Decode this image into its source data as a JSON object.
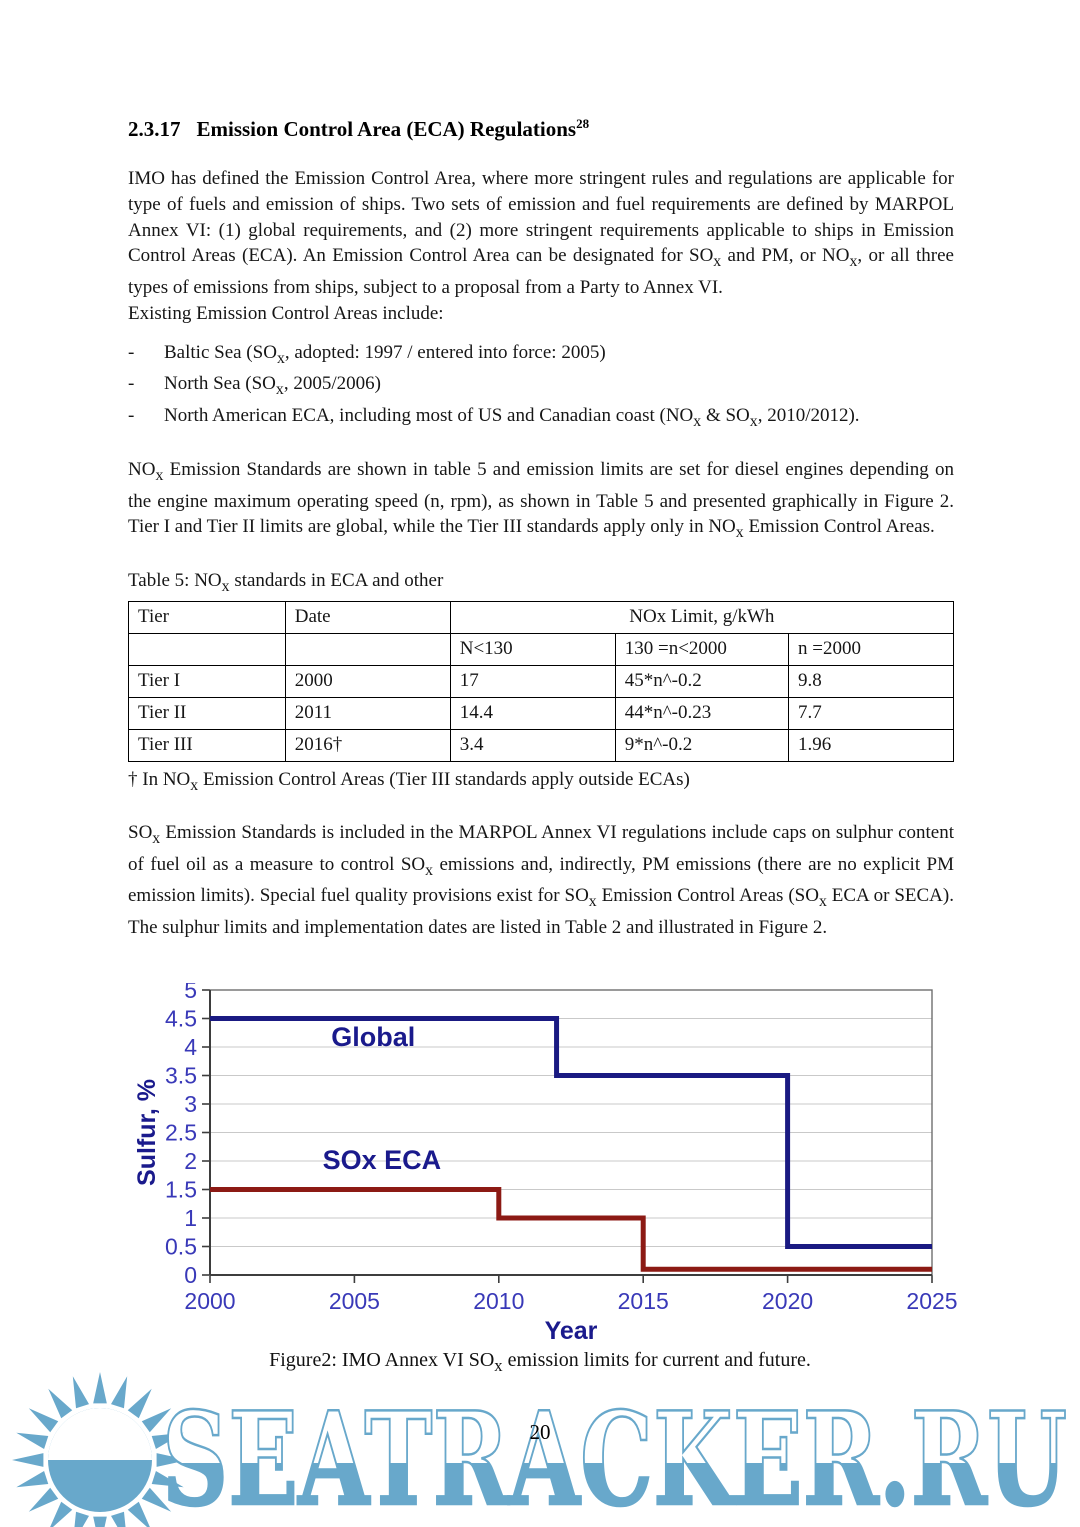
{
  "heading": {
    "number": "2.3.17",
    "title": "Emission Control Area (ECA) Regulations",
    "sup": "28"
  },
  "paragraphs": {
    "p1": "IMO has defined the Emission Control Area, where more stringent rules and regulations are applicable for type of fuels and emission of ships. Two sets of emission and fuel requirements are defined by MARPOL Annex VI: (1) global requirements, and (2) more stringent requirements applicable to ships in Emission Control Areas (ECA). An Emission Control Area can be designated for SO<sub>x</sub> and PM, or NO<sub>x</sub>, or all three types of emissions from ships, subject to a proposal from a Party to Annex VI.",
    "p1b": "Existing Emission Control Areas include:",
    "p2": "NO<sub>x</sub> Emission Standards are shown in table 5 and emission limits are set for diesel engines depending on the engine maximum operating speed (n, rpm), as shown in Table 5 and presented graphically in Figure 2. Tier I and Tier II limits are global, while the Tier III standards apply only in NO<sub>x</sub> Emission Control Areas.",
    "p3": "SO<sub>x</sub> Emission Standards is included in the MARPOL Annex VI regulations include caps on sulphur content of fuel oil as a measure to control SO<sub>x</sub> emissions and, indirectly, PM emissions (there are no explicit PM emission limits). Special fuel quality provisions exist for SO<sub>x</sub> Emission Control Areas (SO<sub>x</sub> ECA or SECA). The sulphur limits and implementation dates are listed in Table 2 and illustrated in Figure 2."
  },
  "bullet_marker": "-",
  "bullets": [
    "Baltic Sea (SO<sub>x</sub>, adopted: 1997 / entered into force: 2005)",
    "North Sea (SO<sub>x</sub>, 2005/2006)",
    "North American ECA, including most of US and Canadian coast (NO<sub>x</sub> &amp; SO<sub>x</sub>, 2010/2012)."
  ],
  "table": {
    "caption": "Table 5: NO<sub>x</sub> standards in ECA and other",
    "col1": "Tier",
    "col2": "Date",
    "span_header": "NOx Limit, g/kWh",
    "subheaders": [
      "N<130",
      "130 =n<2000",
      "n =2000"
    ],
    "rows": [
      [
        "Tier I",
        "2000",
        "17",
        "45*n^-0.2",
        "9.8"
      ],
      [
        "Tier II",
        "2011",
        "14.4",
        "44*n^-0.23",
        "7.7"
      ],
      [
        "Tier III",
        "2016†",
        "3.4",
        "9*n^-0.2",
        "1.96"
      ]
    ],
    "footnote": "† In NO<sub>x</sub> Emission Control Areas (Tier III standards apply outside ECAs)"
  },
  "figure": {
    "caption": "Figure2: IMO Annex VI SO<sub>x</sub> emission limits for current and future."
  },
  "chart_data": {
    "type": "line",
    "subtype": "step",
    "title": "",
    "xlabel": "Year",
    "ylabel": "Sulfur, %",
    "xlim": [
      2000,
      2025
    ],
    "ylim": [
      0,
      5
    ],
    "xtick_step": 5,
    "ytick_step": 0.5,
    "grid": true,
    "legend_position": "inline-annotations",
    "series": [
      {
        "name": "Global",
        "color": "#1a1a82",
        "points": [
          [
            2000,
            4.5
          ],
          [
            2012,
            4.5
          ],
          [
            2012,
            3.5
          ],
          [
            2020,
            3.5
          ],
          [
            2020,
            0.5
          ],
          [
            2025,
            0.5
          ]
        ]
      },
      {
        "name": "SOx ECA",
        "color": "#8c1a14",
        "points": [
          [
            2000,
            1.5
          ],
          [
            2010,
            1.5
          ],
          [
            2010,
            1.0
          ],
          [
            2015,
            1.0
          ],
          [
            2015,
            0.1
          ],
          [
            2025,
            0.1
          ]
        ]
      }
    ],
    "annotations": [
      {
        "text": "Global",
        "x": 2004.2,
        "y": 4.02,
        "color": "#1a1a8c"
      },
      {
        "text": "SOx ECA",
        "x": 2003.9,
        "y": 1.86,
        "color": "#1a1a8c"
      }
    ],
    "colors": {
      "grid": "#c9c9c9",
      "border": "#6e6e6e",
      "axis": "#3d3d3d",
      "tick_label": "#3939b8",
      "axis_title": "#1a1a8c"
    }
  },
  "footer": {
    "page_number": "20",
    "watermark_text": "SEATRACKER.RU",
    "watermark_color": "#68a8cb",
    "watermark_top": "#ffffff"
  }
}
